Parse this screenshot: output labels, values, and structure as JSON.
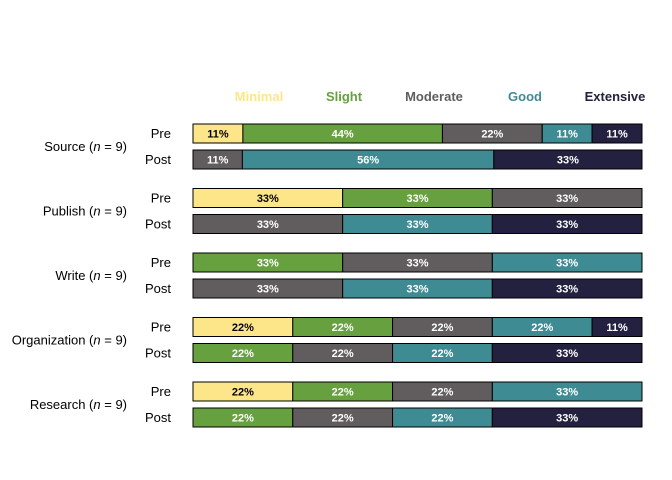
{
  "chart_data": {
    "type": "bar",
    "orientation": "horizontal",
    "stacked": true,
    "legend": {
      "placement": "top",
      "entries": [
        "Minimal",
        "Slight",
        "Moderate",
        "Good",
        "Extensive"
      ]
    },
    "colors": {
      "Minimal": "#fde68a",
      "Slight": "#67a03f",
      "Moderate": "#615c5e",
      "Good": "#3f8b94",
      "Extensive": "#23213f"
    },
    "label_colors": {
      "Minimal": "#000000",
      "Slight": "#ffffff",
      "Moderate": "#ffffff",
      "Good": "#ffffff",
      "Extensive": "#ffffff"
    },
    "groups": [
      {
        "label": "Source (n = 9)",
        "label_prefix": "Source (",
        "n_symbol": "n",
        "label_suffix": " = 9)",
        "rows": [
          {
            "name": "Pre",
            "segments": [
              {
                "category": "Minimal",
                "value": 11,
                "label": "11%"
              },
              {
                "category": "Slight",
                "value": 44,
                "label": "44%"
              },
              {
                "category": "Moderate",
                "value": 22,
                "label": "22%"
              },
              {
                "category": "Good",
                "value": 11,
                "label": "11%"
              },
              {
                "category": "Extensive",
                "value": 11,
                "label": "11%"
              }
            ]
          },
          {
            "name": "Post",
            "segments": [
              {
                "category": "Moderate",
                "value": 11,
                "label": "11%"
              },
              {
                "category": "Good",
                "value": 56,
                "label": "56%"
              },
              {
                "category": "Extensive",
                "value": 33,
                "label": "33%"
              }
            ]
          }
        ]
      },
      {
        "label": "Publish (n = 9)",
        "label_prefix": "Publish (",
        "n_symbol": "n",
        "label_suffix": " = 9)",
        "rows": [
          {
            "name": "Pre",
            "segments": [
              {
                "category": "Minimal",
                "value": 33,
                "label": "33%"
              },
              {
                "category": "Slight",
                "value": 33,
                "label": "33%"
              },
              {
                "category": "Moderate",
                "value": 33,
                "label": "33%"
              }
            ]
          },
          {
            "name": "Post",
            "segments": [
              {
                "category": "Moderate",
                "value": 33,
                "label": "33%"
              },
              {
                "category": "Good",
                "value": 33,
                "label": "33%"
              },
              {
                "category": "Extensive",
                "value": 33,
                "label": "33%"
              }
            ]
          }
        ]
      },
      {
        "label": "Write (n = 9)",
        "label_prefix": "Write (",
        "n_symbol": "n",
        "label_suffix": " = 9)",
        "rows": [
          {
            "name": "Pre",
            "segments": [
              {
                "category": "Slight",
                "value": 33,
                "label": "33%"
              },
              {
                "category": "Moderate",
                "value": 33,
                "label": "33%"
              },
              {
                "category": "Good",
                "value": 33,
                "label": "33%"
              }
            ]
          },
          {
            "name": "Post",
            "segments": [
              {
                "category": "Moderate",
                "value": 33,
                "label": "33%"
              },
              {
                "category": "Good",
                "value": 33,
                "label": "33%"
              },
              {
                "category": "Extensive",
                "value": 33,
                "label": "33%"
              }
            ]
          }
        ]
      },
      {
        "label": "Organization (n = 9)",
        "label_prefix": "Organization (",
        "n_symbol": "n",
        "label_suffix": " = 9)",
        "rows": [
          {
            "name": "Pre",
            "segments": [
              {
                "category": "Minimal",
                "value": 22,
                "label": "22%"
              },
              {
                "category": "Slight",
                "value": 22,
                "label": "22%"
              },
              {
                "category": "Moderate",
                "value": 22,
                "label": "22%"
              },
              {
                "category": "Good",
                "value": 22,
                "label": "22%"
              },
              {
                "category": "Extensive",
                "value": 11,
                "label": "11%"
              }
            ]
          },
          {
            "name": "Post",
            "segments": [
              {
                "category": "Slight",
                "value": 22,
                "label": "22%"
              },
              {
                "category": "Moderate",
                "value": 22,
                "label": "22%"
              },
              {
                "category": "Good",
                "value": 22,
                "label": "22%"
              },
              {
                "category": "Extensive",
                "value": 33,
                "label": "33%"
              }
            ]
          }
        ]
      },
      {
        "label": "Research (n = 9)",
        "label_prefix": "Research (",
        "n_symbol": "n",
        "label_suffix": " = 9)",
        "rows": [
          {
            "name": "Pre",
            "segments": [
              {
                "category": "Minimal",
                "value": 22,
                "label": "22%"
              },
              {
                "category": "Slight",
                "value": 22,
                "label": "22%"
              },
              {
                "category": "Moderate",
                "value": 22,
                "label": "22%"
              },
              {
                "category": "Good",
                "value": 33,
                "label": "33%"
              }
            ]
          },
          {
            "name": "Post",
            "segments": [
              {
                "category": "Slight",
                "value": 22,
                "label": "22%"
              },
              {
                "category": "Moderate",
                "value": 22,
                "label": "22%"
              },
              {
                "category": "Good",
                "value": 22,
                "label": "22%"
              },
              {
                "category": "Extensive",
                "value": 33,
                "label": "33%"
              }
            ]
          }
        ]
      }
    ]
  }
}
